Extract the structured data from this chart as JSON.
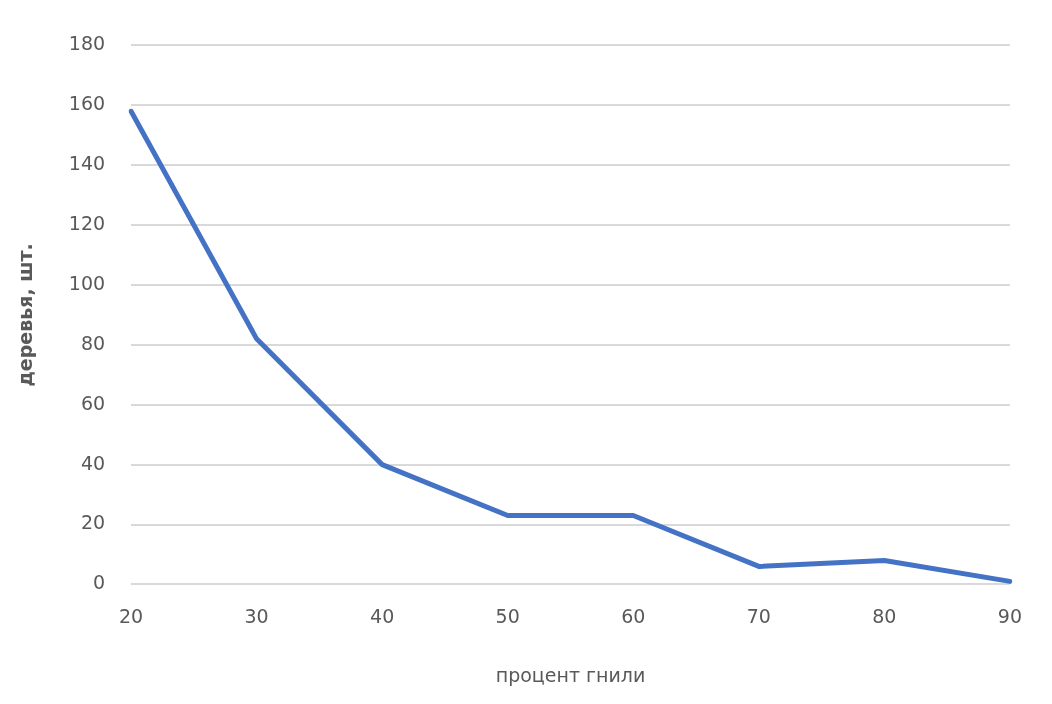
{
  "chart_data": {
    "type": "line",
    "xlabel": "процент гнили",
    "ylabel": "деревья, шт.",
    "categories": [
      "20",
      "30",
      "40",
      "50",
      "60",
      "70",
      "80",
      "90"
    ],
    "series": [
      {
        "color": "#4472c4",
        "values": [
          158,
          82,
          40,
          23,
          23,
          6,
          8,
          1
        ]
      }
    ],
    "ylim": [
      0,
      180
    ],
    "yticks": [
      0,
      20,
      40,
      60,
      80,
      100,
      120,
      140,
      160,
      180
    ],
    "grid": "y",
    "legend": false,
    "marker": "none"
  }
}
